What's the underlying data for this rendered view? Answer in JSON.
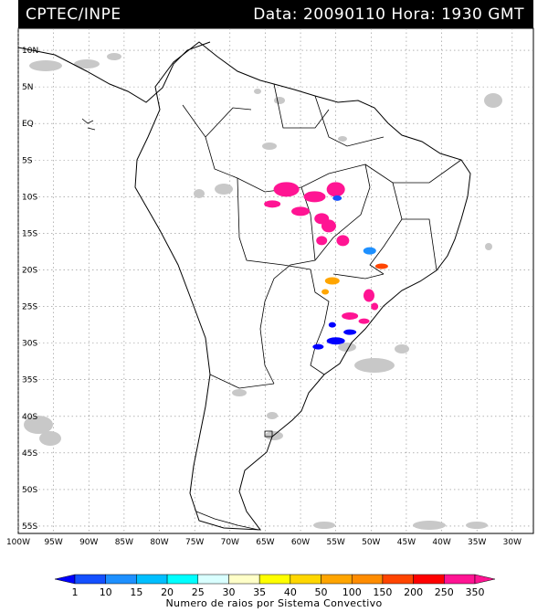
{
  "header": {
    "source": "CPTEC/INPE",
    "datetime": "Data: 20090110 Hora: 1930 GMT"
  },
  "map": {
    "lat_labels": [
      "10N",
      "5N",
      "EQ",
      "5S",
      "10S",
      "15S",
      "20S",
      "25S",
      "30S",
      "35S",
      "40S",
      "45S",
      "50S",
      "55S"
    ],
    "lon_labels": [
      "100W",
      "95W",
      "90W",
      "85W",
      "80W",
      "75W",
      "70W",
      "65W",
      "60W",
      "55W",
      "50W",
      "45W",
      "40W",
      "35W",
      "30W"
    ],
    "lat_values": [
      10,
      5,
      0,
      -5,
      -10,
      -15,
      -20,
      -25,
      -30,
      -35,
      -40,
      -45,
      -50,
      -55
    ],
    "lon_values": [
      -100,
      -95,
      -90,
      -85,
      -80,
      -75,
      -70,
      -65,
      -60,
      -55,
      -50,
      -45,
      -40,
      -35,
      -30
    ],
    "region": {
      "lon_min": -100,
      "lon_max": -27,
      "lat_min": -56,
      "lat_max": 13
    },
    "cloud_color": "#c8c8c8"
  },
  "colorbar": {
    "title": "Numero de raios por Sistema Convectivo",
    "labels": [
      "1",
      "10",
      "15",
      "20",
      "25",
      "30",
      "35",
      "40",
      "50",
      "100",
      "150",
      "200",
      "250",
      "350"
    ],
    "colors": [
      "#0000ff",
      "#1450ff",
      "#1e90ff",
      "#00bfff",
      "#00ffff",
      "#d9ffff",
      "#ffffc8",
      "#ffff00",
      "#ffd700",
      "#ffa500",
      "#ff8c00",
      "#ff4500",
      "#ff0000",
      "#ff1493"
    ]
  },
  "convective_systems": [
    {
      "name": "amazon-south",
      "lon": -59,
      "lat": -11,
      "color": "#ff1493"
    },
    {
      "name": "mato-grosso",
      "lon": -56,
      "lat": -15,
      "color": "#ff1493"
    },
    {
      "name": "blue-cluster-north",
      "lon": -54.5,
      "lat": -10,
      "color": "#1450ff"
    },
    {
      "name": "goias-cyan",
      "lon": -50,
      "lat": -17.5,
      "color": "#1e90ff"
    },
    {
      "name": "minas-orange",
      "lon": -48.5,
      "lat": -19.5,
      "color": "#ff4500"
    },
    {
      "name": "mato-grosso-sul",
      "lon": -55.5,
      "lat": -22,
      "color": "#ffa500"
    },
    {
      "name": "parana",
      "lon": -50,
      "lat": -24,
      "color": "#ff1493"
    },
    {
      "name": "sc-pink",
      "lon": -52,
      "lat": -26.5,
      "color": "#ff1493"
    },
    {
      "name": "rio-grande-blue",
      "lon": -55,
      "lat": -30,
      "color": "#0000ff"
    }
  ]
}
